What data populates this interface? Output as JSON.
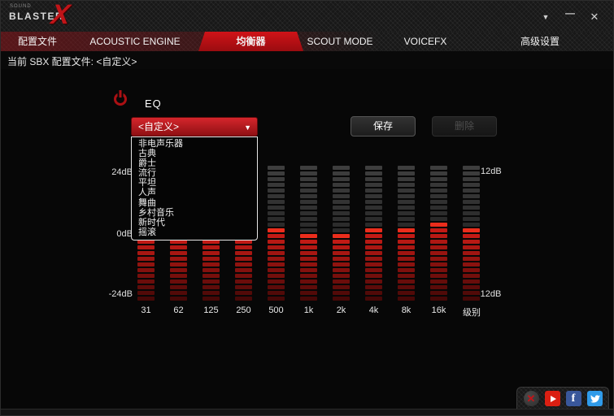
{
  "window": {
    "brand": {
      "sound": "SOUND",
      "blaster": "BLASTER",
      "x": "X"
    },
    "controls": {
      "menu": "▼",
      "minimize": "—",
      "close": "✕"
    }
  },
  "tabs": [
    {
      "label": "配置文件",
      "active": false
    },
    {
      "label": "ACOUSTIC ENGINE",
      "active": false
    },
    {
      "label": "均衡器",
      "active": true
    },
    {
      "label": "SCOUT MODE",
      "active": false
    },
    {
      "label": "VOICEFX",
      "active": false
    },
    {
      "label": "高级设置",
      "active": false
    }
  ],
  "profile_bar": {
    "text": "当前 SBX 配置文件: <自定义>"
  },
  "eq": {
    "title": "EQ",
    "preset": "<自定义>",
    "dropdown_arrow": "▼",
    "options": [
      "非电声乐器",
      "古典",
      "爵士",
      "流行",
      "平坦",
      "人声",
      "舞曲",
      "乡村音乐",
      "新时代",
      "摇滚"
    ],
    "save_label": "保存",
    "delete_label": "删除",
    "segments_total": 24,
    "bands": [
      {
        "label": "31",
        "lit": 12
      },
      {
        "label": "62",
        "lit": 12
      },
      {
        "label": "125",
        "lit": 12
      },
      {
        "label": "250",
        "lit": 12
      },
      {
        "label": "500",
        "lit": 13
      },
      {
        "label": "1k",
        "lit": 12
      },
      {
        "label": "2k",
        "lit": 12
      },
      {
        "label": "4k",
        "lit": 13
      },
      {
        "label": "8k",
        "lit": 13
      },
      {
        "label": "16k",
        "lit": 14
      },
      {
        "label": "级别",
        "lit": 13
      }
    ],
    "axis_left": [
      "24dB",
      "0dB",
      "-24dB"
    ],
    "axis_right": [
      "12dB",
      "-12dB"
    ]
  },
  "chart_data": {
    "type": "bar",
    "title": "EQ",
    "categories": [
      "31",
      "62",
      "125",
      "250",
      "500",
      "1k",
      "2k",
      "4k",
      "8k",
      "16k",
      "级别"
    ],
    "values_db": [
      0,
      0,
      0,
      0,
      2.5,
      0,
      0,
      2.5,
      2.5,
      4.5,
      1
    ],
    "ylabel": "dB",
    "ylim_left": [
      -24,
      24
    ],
    "ylim_right": [
      -12,
      12
    ]
  },
  "social": {
    "blasterx_glyph": "✕",
    "facebook_letter": "f"
  },
  "colors": {
    "accent_red": "#c01418",
    "segment_unlit": "#3e3e3e",
    "segment_lit_bright": "#eb2d1c",
    "segment_lit_dark": "#4a0808"
  }
}
